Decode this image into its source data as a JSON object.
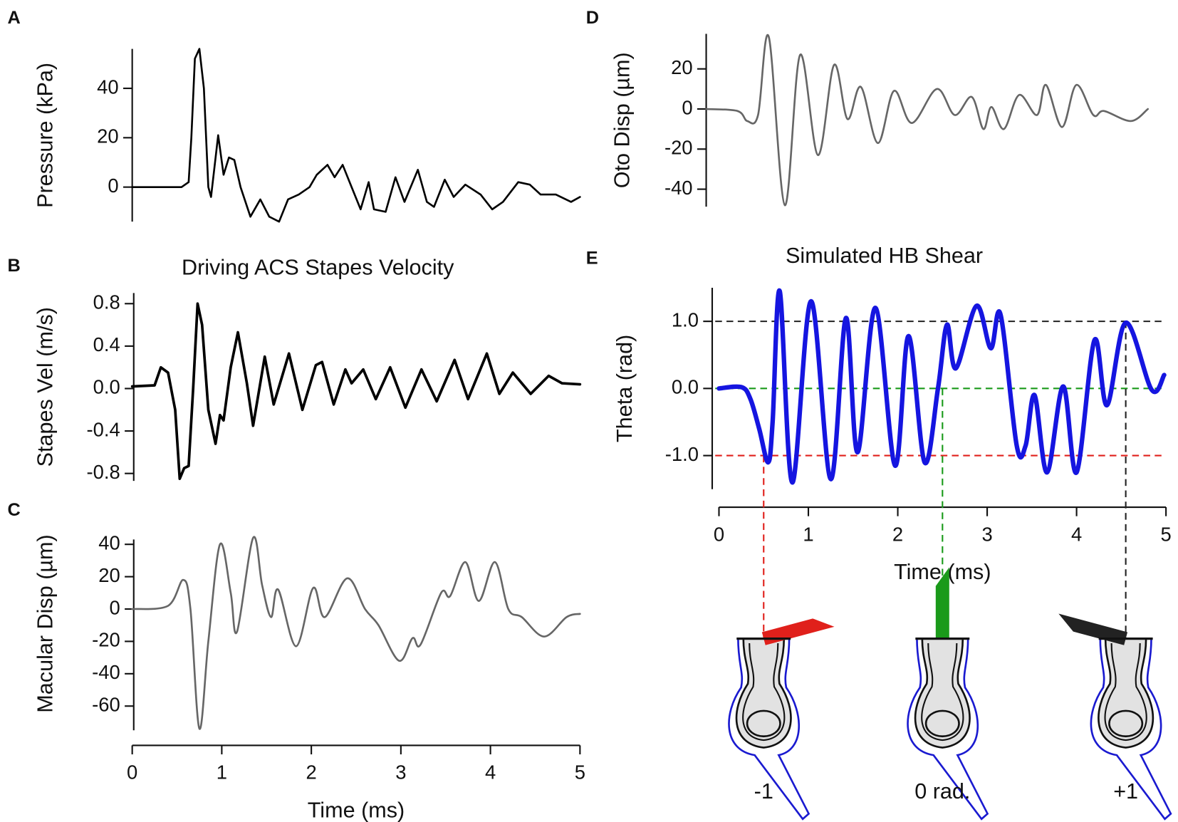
{
  "chart_data": [
    {
      "panel": "A",
      "type": "line",
      "ylabel": "Pressure (kPa)",
      "color": "#000000",
      "line_width": 2.5,
      "smooth": false,
      "xlim": [
        0,
        5
      ],
      "ylim": [
        -14,
        56
      ],
      "yticks": [
        0,
        20,
        40
      ],
      "x": [
        0,
        0.55,
        0.63,
        0.66,
        0.7,
        0.75,
        0.8,
        0.85,
        0.88,
        0.96,
        1.02,
        1.08,
        1.14,
        1.21,
        1.32,
        1.43,
        1.53,
        1.64,
        1.74,
        1.86,
        1.98,
        2.06,
        2.18,
        2.26,
        2.35,
        2.45,
        2.55,
        2.64,
        2.7,
        2.83,
        2.94,
        3.04,
        3.19,
        3.29,
        3.37,
        3.49,
        3.59,
        3.72,
        3.89,
        4.02,
        4.14,
        4.31,
        4.44,
        4.56,
        4.73,
        4.9,
        5.0
      ],
      "values": [
        0,
        0,
        2,
        20,
        52,
        56,
        40,
        0,
        -4,
        21,
        5,
        12,
        11,
        0,
        -12,
        -5,
        -12,
        -14,
        -5,
        -3,
        0,
        5,
        9,
        4,
        9,
        0,
        -9,
        2,
        -9,
        -10,
        4,
        -6,
        7,
        -6,
        -8,
        3,
        -4,
        1,
        -3,
        -9,
        -6,
        2,
        1,
        -3,
        -3,
        -6,
        -4
      ]
    },
    {
      "panel": "B",
      "type": "line",
      "title": "Driving ACS Stapes Velocity",
      "ylabel": "Stapes Vel (m/s)",
      "color": "#000000",
      "line_width": 3.5,
      "smooth": false,
      "xlim": [
        0,
        5
      ],
      "ylim": [
        -0.87,
        0.9
      ],
      "yticks": [
        -0.8,
        -0.4,
        {
          "value": 0,
          "label": "0.0"
        },
        0.4,
        0.8
      ],
      "x": [
        0,
        0.25,
        0.32,
        0.4,
        0.48,
        0.53,
        0.58,
        0.63,
        0.68,
        0.73,
        0.78,
        0.85,
        0.93,
        0.98,
        1.02,
        1.1,
        1.18,
        1.28,
        1.35,
        1.48,
        1.58,
        1.75,
        1.9,
        2.05,
        2.12,
        2.25,
        2.38,
        2.45,
        2.58,
        2.72,
        2.88,
        3.05,
        3.23,
        3.4,
        3.6,
        3.75,
        3.96,
        4.1,
        4.25,
        4.45,
        4.65,
        4.8,
        5.0
      ],
      "values": [
        0.02,
        0.03,
        0.2,
        0.15,
        -0.2,
        -0.85,
        -0.75,
        -0.73,
        0,
        0.8,
        0.6,
        -0.2,
        -0.52,
        -0.25,
        -0.3,
        0.2,
        0.53,
        0.05,
        -0.35,
        0.3,
        -0.15,
        0.33,
        -0.2,
        0.22,
        0.25,
        -0.15,
        0.18,
        0.05,
        0.18,
        -0.1,
        0.2,
        -0.18,
        0.18,
        -0.12,
        0.27,
        -0.1,
        0.33,
        -0.05,
        0.15,
        -0.05,
        0.12,
        0.05,
        0.04
      ]
    },
    {
      "panel": "C",
      "type": "line",
      "ylabel": "Macular Disp (µm)",
      "xlabel": "Time (ms)",
      "color": "#666666",
      "line_width": 2.5,
      "smooth": true,
      "xlim": [
        0,
        5
      ],
      "xticks": [
        0,
        1,
        2,
        3,
        4,
        5
      ],
      "ylim": [
        -75,
        43
      ],
      "yticks": [
        -60,
        -40,
        -20,
        0,
        20,
        40
      ],
      "x": [
        0,
        0.4,
        0.57,
        0.65,
        0.75,
        0.85,
        0.98,
        1.1,
        1.17,
        1.35,
        1.45,
        1.55,
        1.63,
        1.83,
        2.02,
        2.15,
        2.4,
        2.6,
        2.75,
        2.98,
        3.13,
        3.22,
        3.45,
        3.55,
        3.72,
        3.87,
        4.05,
        4.2,
        4.35,
        4.6,
        4.85,
        5.0
      ],
      "values": [
        0,
        2,
        18,
        0,
        -74,
        -20,
        40,
        10,
        -14,
        44,
        15,
        -5,
        12,
        -23,
        13,
        -5,
        19,
        0,
        -10,
        -32,
        -18,
        -22,
        10,
        8,
        29,
        5,
        29,
        0,
        -5,
        -17,
        -5,
        -3
      ]
    },
    {
      "panel": "D",
      "type": "line",
      "ylabel": "Oto Disp (µm)",
      "color": "#666666",
      "line_width": 2.5,
      "smooth": true,
      "xlim": [
        0,
        5
      ],
      "ylim": [
        -48.7,
        37.5
      ],
      "yticks": [
        -40,
        -20,
        0,
        20
      ],
      "x": [
        0,
        0.35,
        0.46,
        0.58,
        0.7,
        0.88,
        1.05,
        1.25,
        1.43,
        1.58,
        1.73,
        1.92,
        2.1,
        2.3,
        2.58,
        2.78,
        2.97,
        3.1,
        3.19,
        3.33,
        3.5,
        3.7,
        3.8,
        3.98,
        4.14,
        4.33,
        4.45,
        4.75,
        4.94
      ],
      "values": [
        0,
        -1,
        -6,
        -3,
        36,
        -48,
        27,
        -23,
        22,
        -5,
        11,
        -17,
        9,
        -7,
        10,
        -3,
        6,
        -10,
        1,
        -10,
        7,
        -3,
        12,
        -9,
        12,
        -3,
        -1,
        -6,
        0
      ]
    },
    {
      "panel": "E",
      "type": "line",
      "title": "Simulated HB Shear",
      "ylabel": "Theta (rad)",
      "xlabel": "Time (ms)",
      "color": "#1515e0",
      "line_width": 6,
      "smooth": true,
      "xlim": [
        0,
        5
      ],
      "xticks": [
        0,
        1,
        2,
        3,
        4,
        5
      ],
      "ylim": [
        -1.5,
        1.5
      ],
      "yticks": [
        {
          "value": -1,
          "label": "-1.0"
        },
        {
          "value": 0,
          "label": "0.0"
        },
        {
          "value": 1,
          "label": "1.0"
        }
      ],
      "x": [
        0,
        0.25,
        0.35,
        0.45,
        0.55,
        0.6,
        0.68,
        0.82,
        1.03,
        1.25,
        1.42,
        1.55,
        1.75,
        1.97,
        2.12,
        2.3,
        2.45,
        2.55,
        2.65,
        2.88,
        3.04,
        3.15,
        3.33,
        3.43,
        3.53,
        3.67,
        3.85,
        4.0,
        4.2,
        4.34,
        4.55,
        4.84,
        4.98
      ],
      "values": [
        0,
        0.02,
        -0.15,
        -0.6,
        -1.1,
        -0.5,
        1.45,
        -1.4,
        1.3,
        -1.35,
        1.05,
        -0.95,
        1.2,
        -1.15,
        0.78,
        -1.1,
        0,
        0.95,
        0.3,
        1.23,
        0.6,
        1.1,
        -0.85,
        -0.85,
        -0.1,
        -1.25,
        0.03,
        -1.25,
        0.72,
        -0.25,
        0.98,
        -0.02,
        0.2
      ],
      "annotations": [
        {
          "label": "-1",
          "theta": -1,
          "time": 0.5,
          "color": "#e0201b"
        },
        {
          "label": "0 rad.",
          "theta": 0,
          "time": 2.5,
          "color": "#1a9a1a"
        },
        {
          "label": "+1",
          "theta": 1,
          "time": 4.55,
          "color": "#222222"
        }
      ]
    }
  ]
}
